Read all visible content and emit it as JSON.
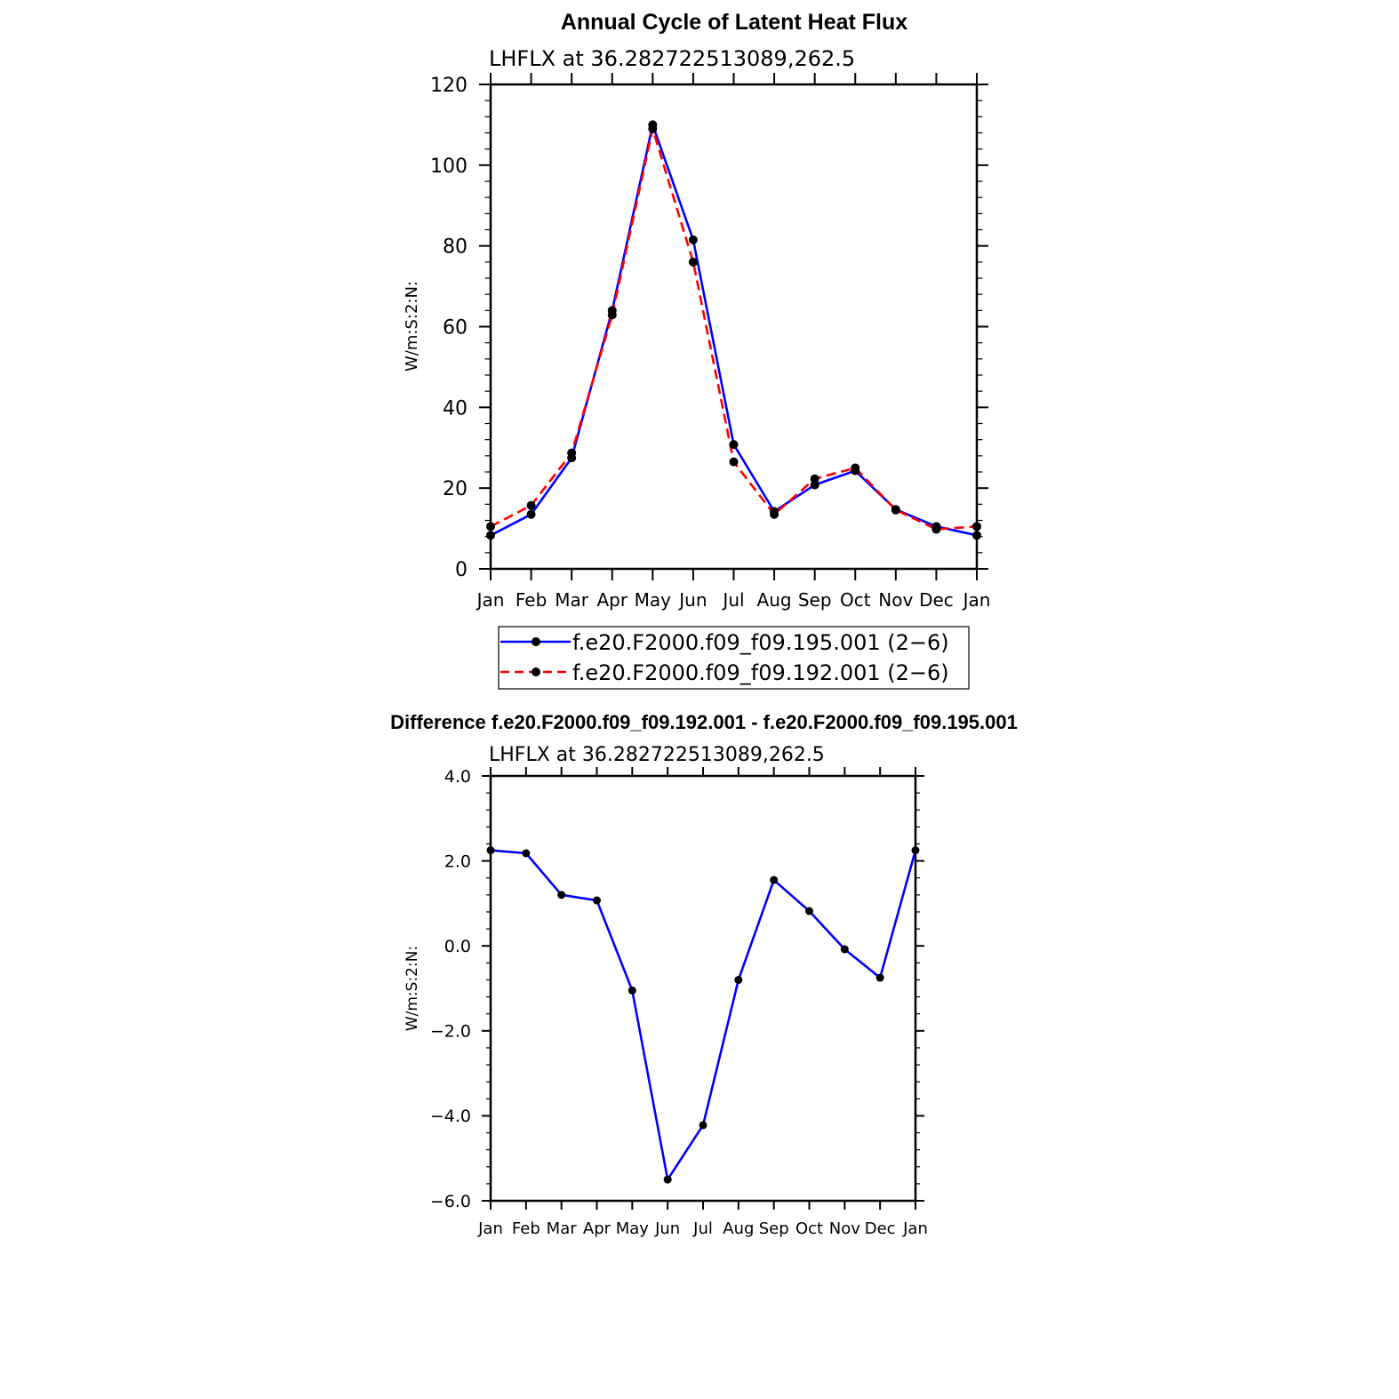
{
  "chart_data": [
    {
      "type": "line",
      "title": "Annual Cycle of Latent Heat Flux",
      "subtitle": "LHFLX at 36.282722513089,262.5",
      "xlabel": "",
      "ylabel": "W/m:S:2:N:",
      "categories": [
        "Jan",
        "Feb",
        "Mar",
        "Apr",
        "May",
        "Jun",
        "Jul",
        "Aug",
        "Sep",
        "Oct",
        "Nov",
        "Dec",
        "Jan"
      ],
      "ylim": [
        0,
        120
      ],
      "yticks": [
        0,
        20,
        40,
        60,
        80,
        100,
        120
      ],
      "ytick_labels": [
        "0",
        "20",
        "40",
        "60",
        "80",
        "100",
        "120"
      ],
      "legend_position": "below",
      "series": [
        {
          "name": "f.e20.F2000.f09_f09.195.001 (2−6)",
          "color": "#0000ff",
          "dash": "solid",
          "values": [
            8.3,
            13.5,
            27.5,
            64.0,
            110.0,
            81.5,
            30.8,
            14.2,
            20.8,
            24.3,
            14.7,
            10.5,
            8.3
          ]
        },
        {
          "name": "f.e20.F2000.f09_f09.192.001 (2−6)",
          "color": "#ff0000",
          "dash": "dashed",
          "values": [
            10.5,
            15.7,
            28.7,
            62.9,
            109.0,
            76.0,
            26.5,
            13.5,
            22.3,
            25.0,
            14.6,
            9.8,
            10.5
          ]
        }
      ]
    },
    {
      "type": "line",
      "title": "Difference f.e20.F2000.f09_f09.192.001 - f.e20.F2000.f09_f09.195.001",
      "subtitle": "LHFLX at 36.282722513089,262.5",
      "xlabel": "",
      "ylabel": "W/m:S:2:N:",
      "categories": [
        "Jan",
        "Feb",
        "Mar",
        "Apr",
        "May",
        "Jun",
        "Jul",
        "Aug",
        "Sep",
        "Oct",
        "Nov",
        "Dec",
        "Jan"
      ],
      "ylim": [
        -6,
        4
      ],
      "yticks": [
        -6,
        -4,
        -2,
        0,
        2,
        4
      ],
      "ytick_labels": [
        "−6.0",
        "−4.0",
        "−2.0",
        "0.0",
        "2.0",
        "4.0"
      ],
      "series": [
        {
          "name": "difference",
          "color": "#0000ff",
          "dash": "solid",
          "values": [
            2.25,
            2.18,
            1.2,
            1.07,
            -1.05,
            -5.5,
            -4.22,
            -0.8,
            1.55,
            0.82,
            -0.08,
            -0.75,
            2.25
          ]
        }
      ]
    }
  ]
}
